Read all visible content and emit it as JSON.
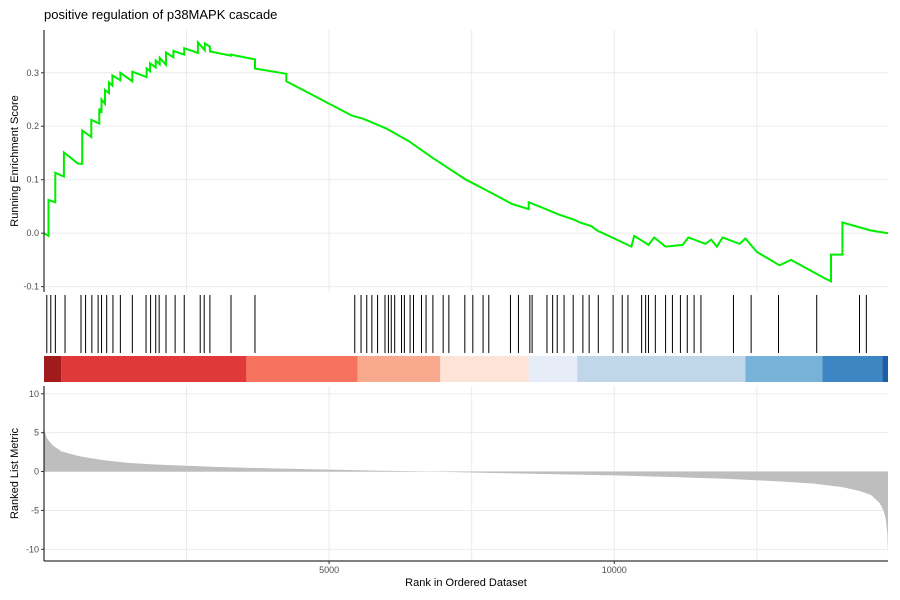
{
  "chart_data": {
    "type": "line",
    "title": "positive regulation of p38MAPK cascade",
    "xlabel": "Rank in Ordered Dataset",
    "xlim": [
      1,
      14800
    ],
    "x_ticks": [
      {
        "value": 5000,
        "label": "5000"
      },
      {
        "value": 10000,
        "label": "10000"
      }
    ],
    "x_grid": [
      2500,
      5000,
      7500,
      10000,
      12500
    ],
    "running_score": {
      "ylabel": "Running Enrichment Score",
      "ylim": [
        -0.11,
        0.38
      ],
      "y_ticks": [
        {
          "value": -0.1,
          "label": "-0.1"
        },
        {
          "value": 0.0,
          "label": "0.0"
        },
        {
          "value": 0.1,
          "label": "0.1"
        },
        {
          "value": 0.2,
          "label": "0.2"
        },
        {
          "value": 0.3,
          "label": "0.3"
        }
      ],
      "color": "#00ee00",
      "x": [
        1,
        80,
        80,
        200,
        200,
        350,
        350,
        600,
        670,
        670,
        830,
        830,
        970,
        970,
        1010,
        1010,
        1070,
        1070,
        1140,
        1140,
        1200,
        1200,
        1340,
        1340,
        1550,
        1550,
        1800,
        1800,
        1860,
        1860,
        1960,
        1960,
        2030,
        2030,
        2140,
        2140,
        2270,
        2270,
        2460,
        2460,
        2700,
        2700,
        2820,
        2820,
        2910,
        2910,
        3280,
        3280,
        3700,
        3700,
        4250,
        4250,
        5400,
        5600,
        5800,
        6000,
        6400,
        6800,
        7400,
        7800,
        8200,
        8500,
        8500,
        8800,
        9000,
        9300,
        9400,
        9600,
        9700,
        10000,
        10300,
        10350,
        10500,
        10600,
        10700,
        10900,
        11200,
        11300,
        11600,
        11700,
        11800,
        11900,
        12200,
        12300,
        12500,
        12900,
        13100,
        13100,
        13700,
        13800,
        13800,
        14000,
        14000,
        14500,
        14800
      ],
      "y": [
        0.0,
        -0.005,
        0.062,
        0.058,
        0.113,
        0.106,
        0.151,
        0.13,
        0.13,
        0.192,
        0.18,
        0.212,
        0.205,
        0.233,
        0.225,
        0.25,
        0.242,
        0.268,
        0.262,
        0.282,
        0.276,
        0.295,
        0.286,
        0.3,
        0.284,
        0.302,
        0.292,
        0.308,
        0.303,
        0.318,
        0.31,
        0.323,
        0.316,
        0.328,
        0.315,
        0.338,
        0.329,
        0.341,
        0.334,
        0.346,
        0.337,
        0.357,
        0.342,
        0.355,
        0.349,
        0.34,
        0.332,
        0.334,
        0.325,
        0.308,
        0.298,
        0.284,
        0.22,
        0.214,
        0.205,
        0.196,
        0.172,
        0.142,
        0.1,
        0.078,
        0.055,
        0.045,
        0.058,
        0.045,
        0.036,
        0.025,
        0.02,
        0.013,
        0.005,
        -0.01,
        -0.025,
        -0.005,
        -0.015,
        -0.022,
        -0.008,
        -0.025,
        -0.022,
        -0.008,
        -0.02,
        -0.012,
        -0.025,
        -0.008,
        -0.02,
        -0.01,
        -0.035,
        -0.06,
        -0.05,
        -0.05,
        -0.085,
        -0.09,
        -0.04,
        -0.04,
        0.02,
        0.005,
        0.0
      ]
    },
    "hit_ranks": [
      50,
      120,
      200,
      370,
      650,
      730,
      840,
      950,
      1010,
      1100,
      1210,
      1340,
      1550,
      1790,
      1870,
      1960,
      2020,
      2140,
      2300,
      2460,
      2740,
      2810,
      2910,
      3280,
      3700,
      5450,
      5560,
      5660,
      5750,
      5850,
      5980,
      6040,
      6090,
      6150,
      6270,
      6320,
      6420,
      6480,
      6620,
      6700,
      6820,
      7000,
      7100,
      7380,
      7520,
      7700,
      7800,
      8180,
      8320,
      8520,
      8560,
      8820,
      8920,
      9000,
      9120,
      9280,
      9450,
      9560,
      9720,
      9980,
      10140,
      10240,
      10480,
      10550,
      10600,
      10720,
      10900,
      11020,
      11160,
      11280,
      11400,
      11520,
      12090,
      12400,
      12880,
      13550,
      14300,
      14420
    ],
    "rank_bar": {
      "segments": [
        {
          "x0": 1,
          "x1": 300,
          "color": "#a11a1c"
        },
        {
          "x0": 300,
          "x1": 3550,
          "color": "#e0393a"
        },
        {
          "x0": 3550,
          "x1": 5500,
          "color": "#f7735d"
        },
        {
          "x0": 5500,
          "x1": 6950,
          "color": "#f9a98e"
        },
        {
          "x0": 6950,
          "x1": 8500,
          "color": "#fee3d8"
        },
        {
          "x0": 8500,
          "x1": 9350,
          "color": "#e6edf8"
        },
        {
          "x0": 9350,
          "x1": 12300,
          "color": "#bfd7e8"
        },
        {
          "x0": 12300,
          "x1": 13650,
          "color": "#77b2d9"
        },
        {
          "x0": 13650,
          "x1": 14700,
          "color": "#3e86c3"
        },
        {
          "x0": 14700,
          "x1": 14800,
          "color": "#1a5fa8"
        }
      ]
    },
    "ranked_metric": {
      "ylabel": "Ranked List Metric",
      "ylim": [
        -11.5,
        11
      ],
      "y_ticks": [
        {
          "value": -10,
          "label": "-10"
        },
        {
          "value": -5,
          "label": "-5"
        },
        {
          "value": 0,
          "label": "0"
        },
        {
          "value": 5,
          "label": "5"
        },
        {
          "value": 10,
          "label": "10"
        }
      ],
      "color": "#bebebe",
      "x": [
        1,
        20,
        60,
        150,
        300,
        600,
        1000,
        1500,
        2000,
        3000,
        4000,
        5000,
        6000,
        7000,
        8000,
        9000,
        10000,
        11000,
        12000,
        13000,
        13500,
        14000,
        14300,
        14500,
        14650,
        14720,
        14760,
        14790,
        14800
      ],
      "y": [
        5.8,
        5.0,
        4.2,
        3.4,
        2.6,
        2.0,
        1.5,
        1.1,
        0.9,
        0.6,
        0.4,
        0.25,
        0.1,
        -0.05,
        -0.2,
        -0.35,
        -0.5,
        -0.7,
        -0.95,
        -1.3,
        -1.55,
        -2.0,
        -2.5,
        -3.0,
        -4.0,
        -5.0,
        -6.0,
        -8.0,
        -10.8
      ]
    }
  }
}
